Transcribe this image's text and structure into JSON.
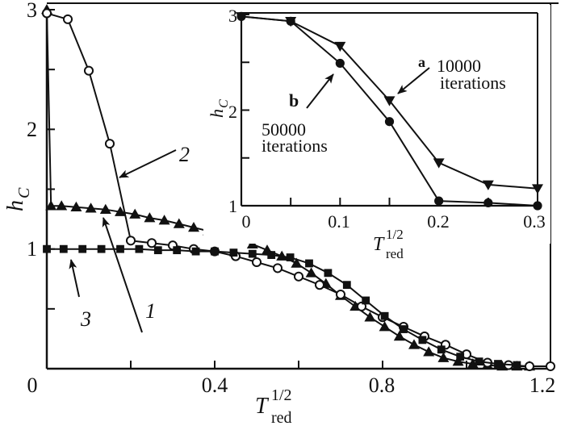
{
  "chart_data": [
    {
      "id": "main",
      "type": "line",
      "title": "",
      "xlabel": "T_red^{1/2}",
      "ylabel": "h_C",
      "xlim": [
        0,
        1.2
      ],
      "ylim": [
        0,
        3
      ],
      "x_ticks": [
        "0",
        "0.4",
        "0.8",
        "1.2"
      ],
      "x_minor_ticks": [
        0.2,
        0.6,
        1.0
      ],
      "y_ticks": [
        "1",
        "2",
        "3"
      ],
      "y_minor_ticks": [
        0.5,
        1.5,
        2.5
      ],
      "grid": false,
      "series": [
        {
          "name": "1",
          "marker": "filled-triangle",
          "x": [
            0.0,
            0.01,
            0.035,
            0.07,
            0.105,
            0.14,
            0.175,
            0.21,
            0.245,
            0.28,
            0.315,
            0.35,
            0.385,
            0.42,
            0.455,
            0.49,
            0.525,
            0.56,
            0.595,
            0.63,
            0.665,
            0.7,
            0.735,
            0.77,
            0.805,
            0.84,
            0.875,
            0.91,
            0.945,
            0.98,
            1.015,
            1.05,
            1.085,
            1.12,
            1.15
          ],
          "values": [
            3.0,
            1.36,
            1.36,
            1.35,
            1.34,
            1.33,
            1.31,
            1.29,
            1.26,
            1.24,
            1.21,
            1.18,
            1.15,
            1.11,
            1.08,
            1.04,
            0.99,
            0.94,
            0.88,
            0.8,
            0.71,
            0.61,
            0.52,
            0.43,
            0.35,
            0.27,
            0.2,
            0.14,
            0.09,
            0.06,
            0.04,
            0.03,
            0.02,
            0.02,
            0.02
          ]
        },
        {
          "name": "2",
          "marker": "open-circle",
          "x": [
            0.0,
            0.05,
            0.1,
            0.15,
            0.2,
            0.25,
            0.3,
            0.35,
            0.4,
            0.45,
            0.5,
            0.55,
            0.6,
            0.65,
            0.7,
            0.75,
            0.8,
            0.85,
            0.9,
            0.95,
            1.0,
            1.05,
            1.1,
            1.15,
            1.2
          ],
          "values": [
            2.97,
            2.92,
            2.49,
            1.88,
            1.07,
            1.05,
            1.03,
            1.0,
            0.98,
            0.94,
            0.89,
            0.84,
            0.77,
            0.7,
            0.62,
            0.52,
            0.43,
            0.35,
            0.27,
            0.2,
            0.12,
            0.05,
            0.03,
            0.02,
            0.02
          ]
        },
        {
          "name": "3",
          "marker": "filled-square",
          "x": [
            0.0,
            0.04,
            0.085,
            0.13,
            0.175,
            0.22,
            0.265,
            0.31,
            0.355,
            0.4,
            0.445,
            0.49,
            0.535,
            0.58,
            0.625,
            0.67,
            0.715,
            0.76,
            0.805,
            0.85,
            0.895,
            0.94,
            0.985,
            1.03,
            1.075,
            1.12
          ],
          "values": [
            1.0,
            1.0,
            1.0,
            1.0,
            1.0,
            1.0,
            0.99,
            0.99,
            0.98,
            0.98,
            0.97,
            0.96,
            0.95,
            0.93,
            0.88,
            0.8,
            0.7,
            0.57,
            0.44,
            0.33,
            0.24,
            0.16,
            0.1,
            0.06,
            0.04,
            0.03
          ]
        }
      ],
      "annotations": [
        {
          "text": "2",
          "target": "curve with open circles"
        },
        {
          "text": "1",
          "target": "curve with filled triangles"
        },
        {
          "text": "3",
          "target": "curve with filled squares"
        }
      ]
    },
    {
      "id": "inset",
      "type": "line",
      "title": "",
      "xlabel": "T_red^{1/2}",
      "ylabel": "h_C",
      "xlim": [
        0,
        0.3
      ],
      "ylim": [
        1,
        3
      ],
      "x_ticks": [
        "0",
        "0.1",
        "0.2",
        "0.3"
      ],
      "x_minor_ticks": [
        0.05,
        0.15,
        0.25
      ],
      "y_ticks": [
        "1",
        "2",
        "3"
      ],
      "y_minor_ticks": [
        1.5,
        2.5
      ],
      "grid": false,
      "series": [
        {
          "name": "a",
          "label": "10000 iterations",
          "marker": "filled-down-triangle",
          "x": [
            0.0,
            0.05,
            0.1,
            0.15,
            0.2,
            0.25,
            0.3
          ],
          "values": [
            2.98,
            2.93,
            2.67,
            2.1,
            1.45,
            1.22,
            1.18
          ]
        },
        {
          "name": "b",
          "label": "50000 iterations",
          "marker": "filled-circle",
          "x": [
            0.0,
            0.05,
            0.1,
            0.15,
            0.2,
            0.25,
            0.3
          ],
          "values": [
            2.98,
            2.93,
            2.49,
            1.88,
            1.05,
            1.03,
            1.0
          ]
        }
      ],
      "annotations": [
        {
          "text": "a",
          "target": "series a"
        },
        {
          "text": "10000",
          "line2": "iterations"
        },
        {
          "text": "b",
          "target": "series b"
        },
        {
          "text": "50000",
          "line2": "iterations"
        }
      ]
    }
  ],
  "labels": {
    "main_x0": "0",
    "main_x1": "0.4",
    "main_x2": "0.8",
    "main_x3": "1.2",
    "main_y1": "1",
    "main_y2": "2",
    "main_y3": "3",
    "inset_x0": "0",
    "inset_x1": "0.1",
    "inset_x2": "0.2",
    "inset_x3": "0.3",
    "inset_y1": "1",
    "inset_y2": "2",
    "inset_y3": "3",
    "x_T": "T",
    "x_sub": "red",
    "x_sup": "1/2",
    "y_h": "h",
    "y_sub": "C",
    "curve1": "1",
    "curve2": "2",
    "curve3": "3",
    "a": "a",
    "a_count": "10000",
    "a_iter": "iterations",
    "b": "b",
    "b_count": "50000",
    "b_iter": "iterations"
  }
}
